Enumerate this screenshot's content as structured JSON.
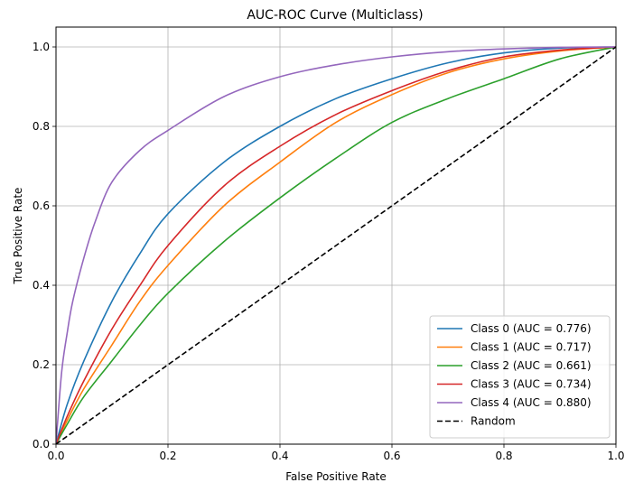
{
  "chart_data": {
    "type": "line",
    "title": "AUC-ROC Curve (Multiclass)",
    "xlabel": "False Positive Rate",
    "ylabel": "True Positive Rate",
    "xlim": [
      0.0,
      1.0
    ],
    "ylim": [
      0.0,
      1.05
    ],
    "x_ticks": [
      "0.0",
      "0.2",
      "0.4",
      "0.6",
      "0.8",
      "1.0"
    ],
    "y_ticks": [
      "0.0",
      "0.2",
      "0.4",
      "0.6",
      "0.8",
      "1.0"
    ],
    "grid": true,
    "legend_position": "lower-right",
    "series": [
      {
        "name": "Class 0 (AUC = 0.776)",
        "color": "#1f77b4",
        "dash": "solid",
        "x": [
          0,
          0.02,
          0.05,
          0.1,
          0.15,
          0.2,
          0.3,
          0.4,
          0.5,
          0.6,
          0.7,
          0.8,
          0.9,
          1.0
        ],
        "y": [
          0,
          0.1,
          0.21,
          0.36,
          0.48,
          0.58,
          0.71,
          0.8,
          0.87,
          0.92,
          0.96,
          0.985,
          0.997,
          1.0
        ]
      },
      {
        "name": "Class 1 (AUC = 0.717)",
        "color": "#ff7f0e",
        "dash": "solid",
        "x": [
          0,
          0.02,
          0.05,
          0.1,
          0.15,
          0.2,
          0.3,
          0.4,
          0.5,
          0.6,
          0.7,
          0.8,
          0.9,
          1.0
        ],
        "y": [
          0,
          0.06,
          0.14,
          0.25,
          0.36,
          0.45,
          0.6,
          0.71,
          0.81,
          0.88,
          0.935,
          0.97,
          0.99,
          1.0
        ]
      },
      {
        "name": "Class 2 (AUC = 0.661)",
        "color": "#2ca02c",
        "dash": "solid",
        "x": [
          0,
          0.02,
          0.05,
          0.1,
          0.15,
          0.2,
          0.3,
          0.4,
          0.5,
          0.6,
          0.7,
          0.8,
          0.9,
          1.0
        ],
        "y": [
          0,
          0.05,
          0.12,
          0.21,
          0.3,
          0.38,
          0.51,
          0.62,
          0.72,
          0.81,
          0.87,
          0.92,
          0.97,
          1.0
        ]
      },
      {
        "name": "Class 3 (AUC = 0.734)",
        "color": "#d62728",
        "dash": "solid",
        "x": [
          0,
          0.02,
          0.05,
          0.1,
          0.15,
          0.2,
          0.3,
          0.4,
          0.5,
          0.6,
          0.7,
          0.8,
          0.9,
          1.0
        ],
        "y": [
          0,
          0.07,
          0.16,
          0.29,
          0.4,
          0.5,
          0.65,
          0.75,
          0.83,
          0.89,
          0.94,
          0.975,
          0.992,
          1.0
        ]
      },
      {
        "name": "Class 4 (AUC = 0.880)",
        "color": "#9467bd",
        "dash": "solid",
        "x": [
          0,
          0.01,
          0.02,
          0.03,
          0.05,
          0.07,
          0.1,
          0.15,
          0.2,
          0.3,
          0.4,
          0.5,
          0.6,
          0.7,
          0.8,
          0.9,
          1.0
        ],
        "y": [
          0,
          0.18,
          0.28,
          0.36,
          0.47,
          0.56,
          0.66,
          0.74,
          0.79,
          0.875,
          0.925,
          0.955,
          0.975,
          0.988,
          0.995,
          0.999,
          1.0
        ]
      },
      {
        "name": "Random",
        "color": "#000000",
        "dash": "dashed",
        "x": [
          0,
          1
        ],
        "y": [
          0,
          1
        ]
      }
    ]
  }
}
